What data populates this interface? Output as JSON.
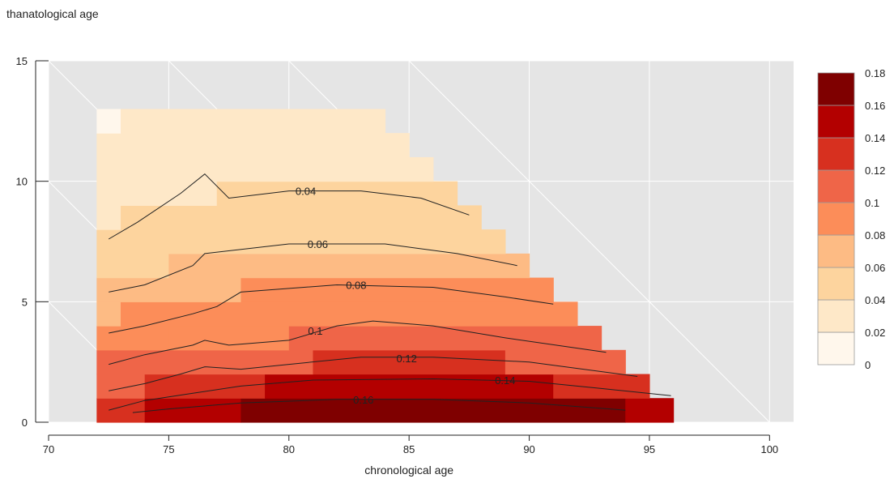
{
  "chart_data": {
    "type": "heatmap",
    "title": "",
    "ylabel": "thanatological age",
    "xlabel": "chronological age",
    "xlim": [
      70,
      101
    ],
    "ylim": [
      0,
      15
    ],
    "x_ticks": [
      70,
      75,
      80,
      85,
      90,
      95,
      100
    ],
    "y_ticks": [
      0,
      5,
      10,
      15
    ],
    "grid": true,
    "background": "#e5e5e5",
    "legend": {
      "position": "right",
      "breaks": [
        0,
        0.02,
        0.04,
        0.06,
        0.08,
        0.1,
        0.12,
        0.14,
        0.16,
        0.18
      ],
      "break_labels": [
        "0",
        "0.02",
        "0.04",
        "0.06",
        "0.08",
        "0.1",
        "0.12",
        "0.14",
        "0.16",
        "0.18"
      ],
      "colors": [
        "#fff7ec",
        "#fee8c8",
        "#fdd49e",
        "#fdbb84",
        "#fc8d59",
        "#ef6548",
        "#d7301f",
        "#b30000",
        "#7f0000"
      ]
    },
    "bands": [
      {
        "y": [
          0,
          1
        ],
        "segments": [
          [
            72,
            74,
            6
          ],
          [
            74,
            78,
            7
          ],
          [
            78,
            94,
            8
          ],
          [
            94,
            96,
            7
          ]
        ]
      },
      {
        "y": [
          1,
          2
        ],
        "segments": [
          [
            72,
            74,
            5
          ],
          [
            74,
            79,
            6
          ],
          [
            79,
            91,
            7
          ],
          [
            91,
            95,
            6
          ]
        ]
      },
      {
        "y": [
          2,
          3
        ],
        "segments": [
          [
            72,
            73,
            5
          ],
          [
            73,
            75,
            5
          ],
          [
            75,
            81,
            5
          ],
          [
            81,
            89,
            6
          ],
          [
            89,
            94,
            5
          ]
        ]
      },
      {
        "y": [
          3,
          4
        ],
        "segments": [
          [
            72,
            75,
            4
          ],
          [
            75,
            80,
            4
          ],
          [
            80,
            93,
            5
          ]
        ]
      },
      {
        "y": [
          4,
          5
        ],
        "segments": [
          [
            72,
            73,
            3
          ],
          [
            73,
            92,
            4
          ]
        ]
      },
      {
        "y": [
          5,
          6
        ],
        "segments": [
          [
            72,
            75,
            3
          ],
          [
            75,
            78,
            3
          ],
          [
            78,
            91,
            4
          ]
        ]
      },
      {
        "y": [
          6,
          7
        ],
        "segments": [
          [
            72,
            75,
            2
          ],
          [
            75,
            90,
            3
          ]
        ]
      },
      {
        "y": [
          7,
          8
        ],
        "segments": [
          [
            72,
            89,
            2
          ]
        ]
      },
      {
        "y": [
          8,
          9
        ],
        "segments": [
          [
            72,
            73,
            1
          ],
          [
            73,
            88,
            2
          ]
        ]
      },
      {
        "y": [
          9,
          10
        ],
        "segments": [
          [
            72,
            77,
            1
          ],
          [
            77,
            87,
            2
          ]
        ]
      },
      {
        "y": [
          10,
          11
        ],
        "segments": [
          [
            72,
            86,
            1
          ]
        ]
      },
      {
        "y": [
          11,
          12
        ],
        "segments": [
          [
            72,
            85,
            1
          ]
        ]
      },
      {
        "y": [
          12,
          13
        ],
        "segments": [
          [
            72,
            73,
            0
          ],
          [
            73,
            84,
            1
          ]
        ]
      }
    ],
    "contours": [
      {
        "label": "0.04",
        "label_at": [
          80.7,
          9.6
        ],
        "points": [
          [
            72.5,
            7.6
          ],
          [
            73.7,
            8.3
          ],
          [
            75.5,
            9.5
          ],
          [
            76.5,
            10.3
          ],
          [
            77.5,
            9.3
          ],
          [
            80,
            9.6
          ],
          [
            83,
            9.6
          ],
          [
            85.5,
            9.3
          ],
          [
            87.5,
            8.6
          ]
        ]
      },
      {
        "label": "0.06",
        "label_at": [
          81.2,
          7.4
        ],
        "points": [
          [
            72.5,
            5.4
          ],
          [
            74,
            5.7
          ],
          [
            76,
            6.5
          ],
          [
            76.5,
            7.0
          ],
          [
            80,
            7.4
          ],
          [
            84,
            7.4
          ],
          [
            87,
            7.0
          ],
          [
            89.5,
            6.5
          ]
        ]
      },
      {
        "label": "0.08",
        "label_at": [
          82.8,
          5.7
        ],
        "points": [
          [
            72.5,
            3.7
          ],
          [
            74,
            4.0
          ],
          [
            76,
            4.5
          ],
          [
            77,
            4.8
          ],
          [
            78,
            5.4
          ],
          [
            82,
            5.7
          ],
          [
            86,
            5.6
          ],
          [
            89,
            5.2
          ],
          [
            91,
            4.9
          ]
        ]
      },
      {
        "label": "0.1",
        "label_at": [
          81.1,
          3.8
        ],
        "points": [
          [
            72.5,
            2.4
          ],
          [
            74,
            2.8
          ],
          [
            76,
            3.2
          ],
          [
            76.5,
            3.4
          ],
          [
            77.5,
            3.2
          ],
          [
            80,
            3.4
          ],
          [
            82,
            4.0
          ],
          [
            83.5,
            4.2
          ],
          [
            86,
            4.0
          ],
          [
            89,
            3.5
          ],
          [
            93.2,
            2.9
          ]
        ]
      },
      {
        "label": "0.12",
        "label_at": [
          84.9,
          2.65
        ],
        "points": [
          [
            72.5,
            1.3
          ],
          [
            74,
            1.6
          ],
          [
            75.5,
            2.0
          ],
          [
            76.5,
            2.3
          ],
          [
            78,
            2.2
          ],
          [
            80,
            2.4
          ],
          [
            83,
            2.7
          ],
          [
            86,
            2.7
          ],
          [
            90,
            2.5
          ],
          [
            94.5,
            1.9
          ]
        ]
      },
      {
        "label": "0.14",
        "label_at": [
          89.0,
          1.75
        ],
        "points": [
          [
            72.5,
            0.5
          ],
          [
            74,
            0.9
          ],
          [
            76,
            1.2
          ],
          [
            78,
            1.5
          ],
          [
            81,
            1.75
          ],
          [
            86,
            1.8
          ],
          [
            90,
            1.7
          ],
          [
            93,
            1.4
          ],
          [
            95.9,
            1.1
          ]
        ]
      },
      {
        "label": "0.16",
        "label_at": [
          83.1,
          0.95
        ],
        "points": [
          [
            73.5,
            0.4
          ],
          [
            75,
            0.55
          ],
          [
            78,
            0.8
          ],
          [
            82,
            0.95
          ],
          [
            86,
            0.95
          ],
          [
            90,
            0.8
          ],
          [
            94,
            0.5
          ]
        ]
      }
    ]
  }
}
